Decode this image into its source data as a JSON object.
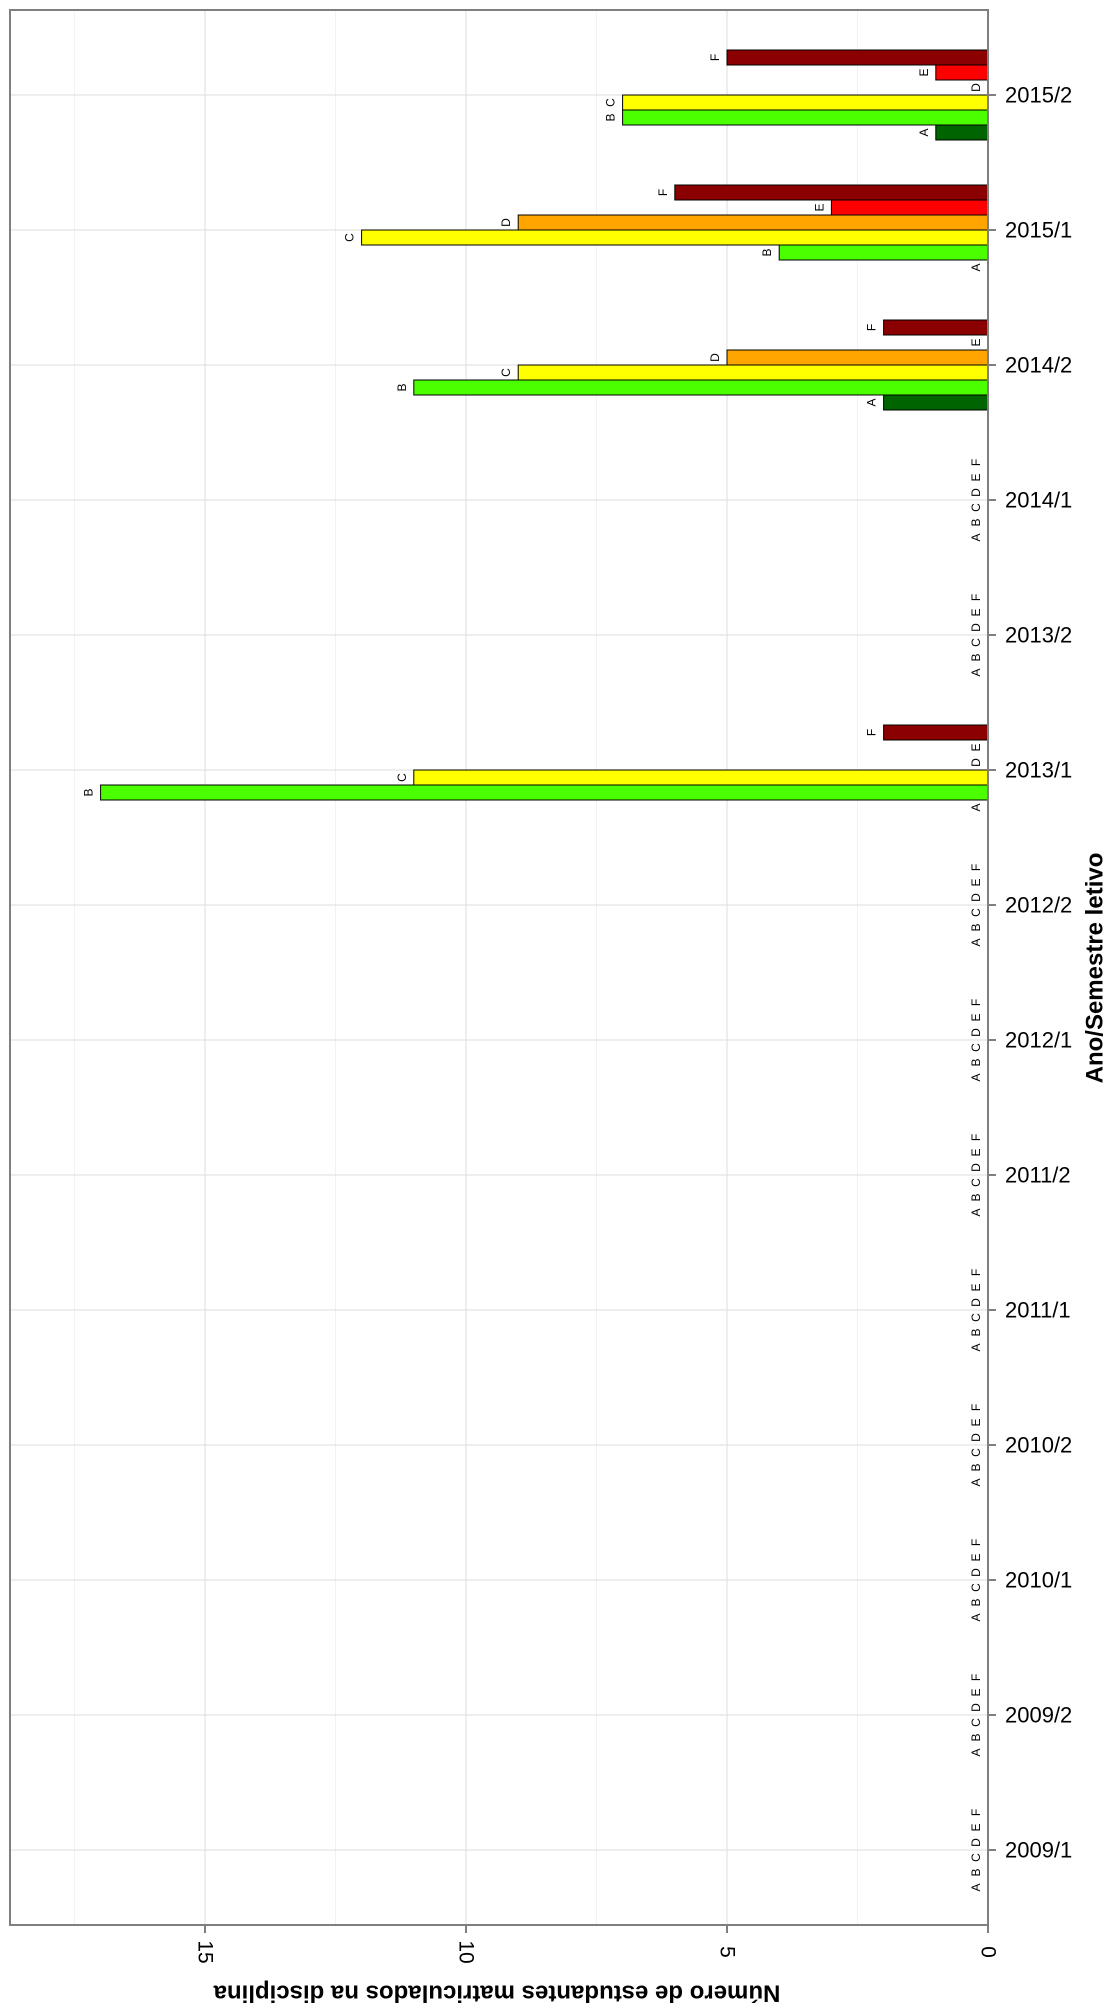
{
  "chart_data": {
    "type": "bar",
    "orientation": "vertical-bars-rotated-page",
    "title": "",
    "xlabel": "Ano/Semestre letivo",
    "ylabel": "Número de estudantes matriculados na disciplina",
    "ylim": [
      0,
      18.5
    ],
    "yticks": [
      0,
      5,
      10,
      15
    ],
    "grid": true,
    "legend": "none",
    "categories": [
      "2009/1",
      "2009/2",
      "2010/1",
      "2010/2",
      "2011/1",
      "2011/2",
      "2012/1",
      "2012/2",
      "2013/1",
      "2013/2",
      "2014/1",
      "2014/2",
      "2015/1",
      "2015/2"
    ],
    "series": [
      {
        "name": "A",
        "color": "#006400",
        "values": [
          0,
          0,
          0,
          0,
          0,
          0,
          0,
          0,
          0,
          0,
          0,
          2,
          0,
          1
        ]
      },
      {
        "name": "B",
        "color": "#4cff00",
        "values": [
          0,
          0,
          0,
          0,
          0,
          0,
          0,
          0,
          17,
          0,
          0,
          11,
          4,
          7
        ]
      },
      {
        "name": "C",
        "color": "#ffff00",
        "values": [
          0,
          0,
          0,
          0,
          0,
          0,
          0,
          0,
          11,
          0,
          0,
          9,
          12,
          7
        ]
      },
      {
        "name": "D",
        "color": "#ffa500",
        "values": [
          0,
          0,
          0,
          0,
          0,
          0,
          0,
          0,
          0,
          0,
          0,
          5,
          9,
          0
        ]
      },
      {
        "name": "E",
        "color": "#ff0000",
        "values": [
          0,
          0,
          0,
          0,
          0,
          0,
          0,
          0,
          0,
          0,
          0,
          0,
          3,
          1
        ]
      },
      {
        "name": "F",
        "color": "#8b0000",
        "values": [
          0,
          0,
          0,
          0,
          0,
          0,
          0,
          0,
          2,
          0,
          0,
          2,
          6,
          5
        ]
      }
    ]
  }
}
